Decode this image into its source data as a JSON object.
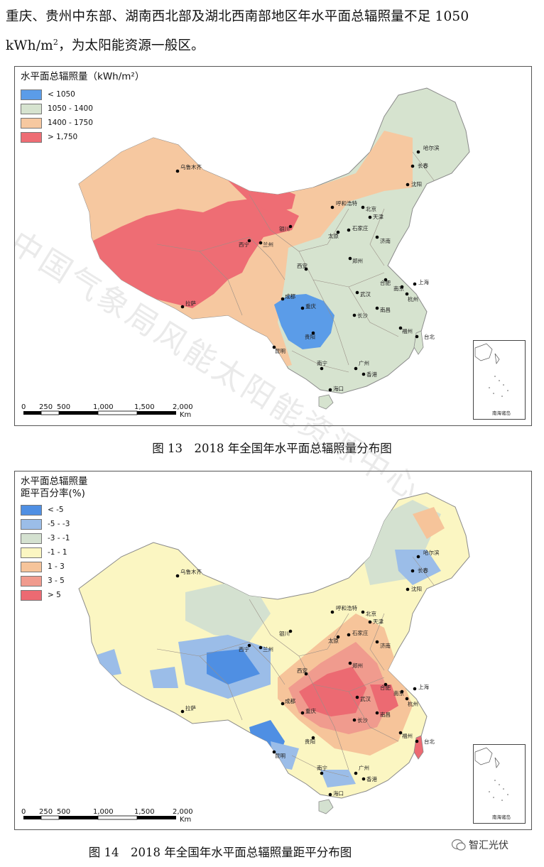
{
  "intro": {
    "line1": "重庆、贵州中东部、湖南西北部及湖北西南部地区年水平面总辐照量不足 1050",
    "line2_a": "kWh/m",
    "line2_sup": "2",
    "line2_b": "，为太阳能资源一般区。"
  },
  "map1": {
    "legend_title": "水平面总辐照量（kWh/m²）",
    "legend": [
      {
        "label": "< 1050",
        "color": "#5b9ce8"
      },
      {
        "label": "1050 - 1400",
        "color": "#d6e3cf"
      },
      {
        "label": "1400 - 1750",
        "color": "#f6c8a0"
      },
      {
        "label": "> 1,750",
        "color": "#ee6d74"
      }
    ],
    "caption": "图 13　2018 年全国年水平面总辐照量分布图"
  },
  "map2": {
    "legend_title_1": "水平面总辐照量",
    "legend_title_2": "距平百分率(%)",
    "legend": [
      {
        "label": "< -5",
        "color": "#4f8fe3"
      },
      {
        "label": "-5 - -3",
        "color": "#9bbde8"
      },
      {
        "label": "-3 - -1",
        "color": "#d4e1d0"
      },
      {
        "label": "-1 - 1",
        "color": "#fbf6c2"
      },
      {
        "label": "1 - 3",
        "color": "#f6c49a"
      },
      {
        "label": "3 - 5",
        "color": "#f09b8e"
      },
      {
        "label": "> 5",
        "color": "#ec6a72"
      }
    ],
    "caption": "图 14　2018 年全国年水平面总辐照量距平分布图"
  },
  "scale": {
    "t0": "0",
    "t1": "250",
    "t2": "500",
    "t3": "1,000",
    "t4": "1,500",
    "t5": "2,000",
    "unit": "Km"
  },
  "inset_label": "南海诸岛",
  "cities": {
    "urumqi": "乌鲁木齐",
    "harbin": "哈尔滨",
    "changchun": "长春",
    "shenyang": "沈阳",
    "hohhot": "呼和浩特",
    "beijing": "北京",
    "tianjin": "天津",
    "yinchuan": "银川",
    "shijiazhuang": "石家庄",
    "taiyuan": "太原",
    "jinan": "济南",
    "xining": "西宁",
    "lanzhou": "兰州",
    "zhengzhou": "郑州",
    "xian": "西安",
    "hefei": "合肥",
    "nanjing": "南京",
    "shanghai": "上海",
    "wuhan": "武汉",
    "hangzhou": "杭州",
    "lhasa": "拉萨",
    "chengdu": "成都",
    "chongqing": "重庆",
    "changsha": "长沙",
    "nanchang": "南昌",
    "guiyang": "贵阳",
    "fuzhou": "福州",
    "taipei": "台北",
    "kunming": "昆明",
    "guangzhou": "广州",
    "nanning": "南宁",
    "hongkong": "香港",
    "haikou": "海口"
  },
  "watermark": "中国气象局风能太阳能资源中心",
  "logo_text": "智汇光伏"
}
